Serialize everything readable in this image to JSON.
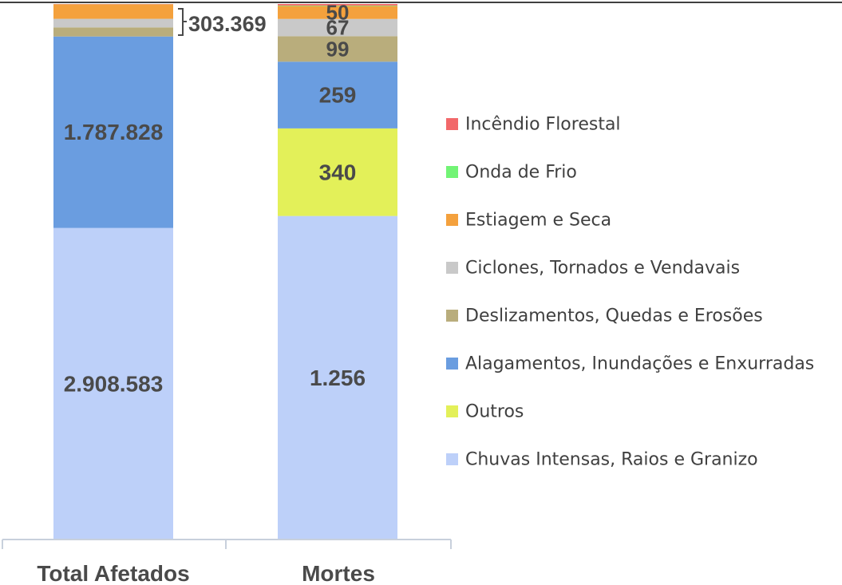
{
  "chart_data": {
    "type": "bar",
    "stacked": true,
    "percent_normalized": true,
    "categories": [
      "Total Afetados",
      "Mortes"
    ],
    "series": [
      {
        "name": "Chuvas Intensas, Raios e Granizo",
        "color": "#bdd0f9",
        "values": [
          2908583,
          1256
        ],
        "labels": [
          "2.908.583",
          "1.256"
        ]
      },
      {
        "name": "Outros",
        "color": "#e3f059",
        "values": [
          0,
          340
        ],
        "labels": [
          "",
          "340"
        ]
      },
      {
        "name": "Alagamentos, Inundações e Enxurradas",
        "color": "#6a9de0",
        "values": [
          1787828,
          259
        ],
        "labels": [
          "1.787.828",
          "259"
        ]
      },
      {
        "name": "Deslizamentos, Quedas e Erosões",
        "color": "#b9ad7c",
        "values": [
          85000,
          99
        ],
        "labels": [
          "",
          "99"
        ]
      },
      {
        "name": "Ciclones, Tornados e Vendavais",
        "color": "#c9c9c9",
        "values": [
          80000,
          67
        ],
        "labels": [
          "",
          "67"
        ]
      },
      {
        "name": "Estiagem e Seca",
        "color": "#f4a13d",
        "values": [
          135000,
          50
        ],
        "labels": [
          "",
          "50"
        ]
      },
      {
        "name": "Onda de Frio",
        "color": "#72f475",
        "values": [
          1000,
          2
        ],
        "labels": [
          "",
          ""
        ]
      },
      {
        "name": "Incêndio Florestal",
        "color": "#f2686a",
        "values": [
          2369,
          6
        ],
        "labels": [
          "",
          ""
        ]
      }
    ],
    "bracket_label": "303.369",
    "legend_position": "right",
    "grid": false
  }
}
